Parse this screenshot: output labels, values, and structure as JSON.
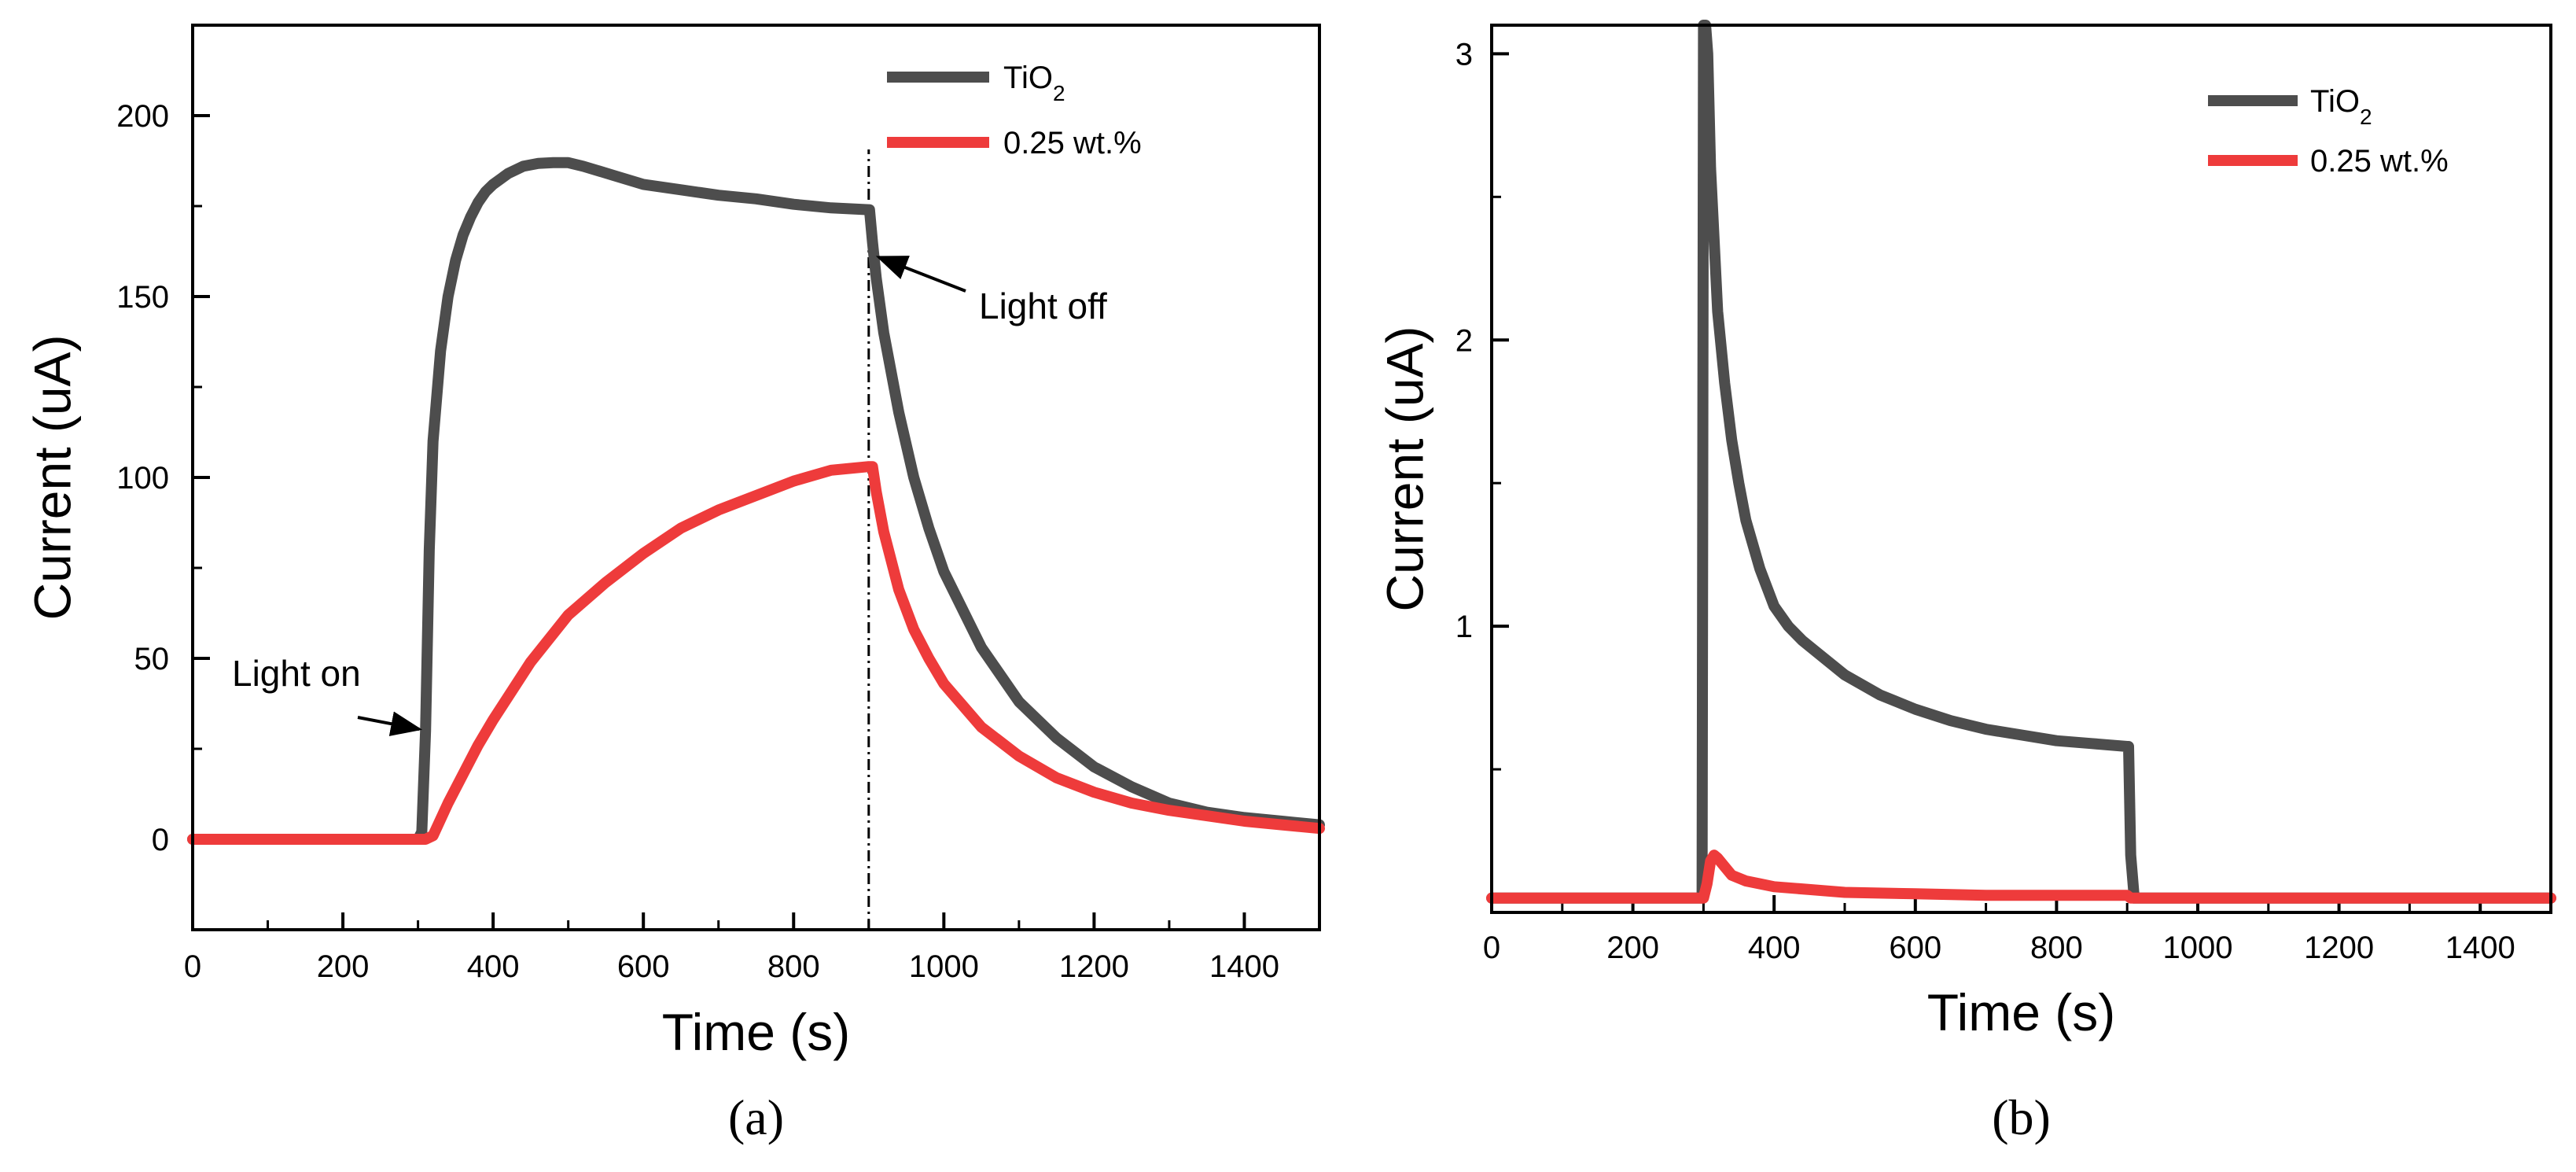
{
  "colors": {
    "tio2": "#4d4d4d",
    "wt025": "#ee3b3b",
    "axis": "#000000",
    "background": "#ffffff"
  },
  "chart_data": [
    {
      "panel": "(a)",
      "type": "line",
      "xlabel": "Time (s)",
      "ylabel": "Current (uA)",
      "xlim": [
        0,
        1500
      ],
      "ylim": [
        -25,
        225
      ],
      "xticks": [
        0,
        200,
        400,
        600,
        800,
        1000,
        1200,
        1400
      ],
      "xtick_labels": [
        "0",
        "200",
        "400",
        "600",
        "800",
        "1000",
        "1200",
        "1400"
      ],
      "yticks": [
        0,
        50,
        100,
        150,
        200
      ],
      "ytick_labels": [
        "0",
        "50",
        "100",
        "150",
        "200"
      ],
      "grid": false,
      "legend_position": "top-right",
      "series": [
        {
          "name": "TiO2",
          "name_main": "TiO",
          "name_sub": "2",
          "x": [
            0,
            300,
            305,
            310,
            315,
            320,
            330,
            340,
            350,
            360,
            370,
            380,
            390,
            400,
            420,
            440,
            460,
            480,
            500,
            520,
            560,
            600,
            650,
            700,
            750,
            800,
            850,
            900,
            901,
            905,
            910,
            920,
            940,
            960,
            980,
            1000,
            1050,
            1100,
            1150,
            1200,
            1250,
            1300,
            1350,
            1400,
            1450,
            1500
          ],
          "y": [
            0,
            0,
            2,
            30,
            80,
            110,
            135,
            150,
            160,
            167,
            172,
            176,
            179,
            181,
            184,
            186,
            186.8,
            187,
            187,
            186,
            183.5,
            181,
            179.5,
            178,
            177,
            175.5,
            174.5,
            174,
            174,
            165,
            155,
            140,
            118,
            100,
            86,
            74,
            53,
            38,
            28,
            20,
            14.5,
            10,
            7.5,
            6,
            5,
            4
          ]
        },
        {
          "name": "0.25 wt.%",
          "name_main": "0.25 wt.%",
          "name_sub": "",
          "x": [
            0,
            310,
            320,
            340,
            360,
            380,
            400,
            450,
            500,
            550,
            600,
            650,
            700,
            750,
            800,
            850,
            900,
            905,
            910,
            920,
            940,
            960,
            980,
            1000,
            1050,
            1100,
            1150,
            1200,
            1250,
            1300,
            1350,
            1400,
            1450,
            1500
          ],
          "y": [
            0,
            0,
            1,
            10,
            18,
            26,
            33,
            49,
            62,
            71,
            79,
            86,
            91,
            95,
            99,
            102,
            103,
            103,
            96,
            85,
            69,
            58,
            50,
            43,
            31,
            23,
            17,
            13,
            10,
            8,
            6.5,
            5,
            4,
            3
          ]
        }
      ],
      "annotations": [
        {
          "text": "Light on",
          "x": 310,
          "y": 30
        },
        {
          "text": "Light off",
          "x": 905,
          "y": 160
        }
      ],
      "vline_x": 900
    },
    {
      "panel": "(b)",
      "type": "line",
      "xlabel": "Time (s)",
      "ylabel": "Current (uA)",
      "xlim": [
        0,
        1500
      ],
      "ylim": [
        0,
        3.1
      ],
      "xticks": [
        0,
        200,
        400,
        600,
        800,
        1000,
        1200,
        1400
      ],
      "xtick_labels": [
        "0",
        "200",
        "400",
        "600",
        "800",
        "1000",
        "1200",
        "1400"
      ],
      "yticks": [
        1,
        2,
        3
      ],
      "ytick_labels": [
        "1",
        "2",
        "3"
      ],
      "grid": false,
      "legend_position": "top-right",
      "series": [
        {
          "name": "TiO2",
          "name_main": "TiO",
          "name_sub": "2",
          "x": [
            0,
            100,
            200,
            290,
            298,
            300,
            303,
            306,
            310,
            315,
            320,
            330,
            340,
            350,
            360,
            380,
            400,
            420,
            440,
            460,
            500,
            550,
            600,
            650,
            700,
            750,
            800,
            850,
            900,
            902,
            905,
            910,
            920,
            1000,
            1100,
            1200,
            1300,
            1400,
            1500
          ],
          "y": [
            0.05,
            0.05,
            0.05,
            0.05,
            0.05,
            3.1,
            3.1,
            3.0,
            2.6,
            2.35,
            2.1,
            1.85,
            1.65,
            1.5,
            1.37,
            1.2,
            1.07,
            1.0,
            0.95,
            0.91,
            0.83,
            0.76,
            0.71,
            0.67,
            0.64,
            0.62,
            0.6,
            0.59,
            0.58,
            0.58,
            0.2,
            0.05,
            0.05,
            0.05,
            0.05,
            0.05,
            0.05,
            0.05,
            0.05
          ]
        },
        {
          "name": "0.25 wt.%",
          "name_main": "0.25 wt.%",
          "name_sub": "",
          "x": [
            0,
            100,
            200,
            300,
            305,
            310,
            315,
            320,
            330,
            340,
            360,
            380,
            400,
            450,
            500,
            600,
            700,
            800,
            900,
            905,
            920,
            1000,
            1200,
            1500
          ],
          "y": [
            0.05,
            0.05,
            0.05,
            0.05,
            0.1,
            0.18,
            0.2,
            0.19,
            0.16,
            0.13,
            0.11,
            0.1,
            0.09,
            0.08,
            0.07,
            0.065,
            0.06,
            0.06,
            0.06,
            0.05,
            0.05,
            0.05,
            0.05,
            0.05
          ]
        }
      ],
      "annotations": []
    }
  ]
}
